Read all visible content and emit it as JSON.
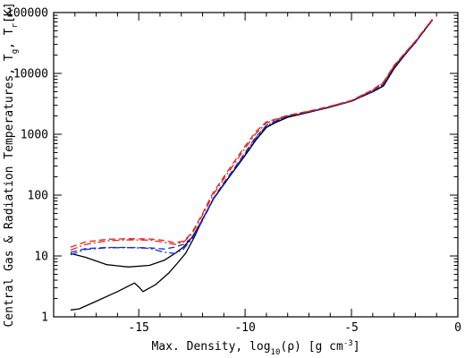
{
  "chart_data": {
    "type": "line",
    "xlabel_prefix": "Max. Density, log",
    "xlabel_sub": "10",
    "xlabel_mid": "(ρ) [g cm",
    "xlabel_sup": "-3",
    "xlabel_suffix": "]",
    "ylabel_prefix": "Central Gas & Radiation Temperatures, T",
    "ylabel_sub1": "g",
    "ylabel_mid": ", T",
    "ylabel_sub2": "r",
    "ylabel_suffix": "[K]",
    "xlim": [
      -19,
      0
    ],
    "ylim": [
      1,
      100000
    ],
    "y_scale": "log",
    "x_ticks": [
      -15,
      -10,
      -5,
      0
    ],
    "y_ticks": [
      1,
      10,
      100,
      1000,
      10000,
      100000
    ],
    "x_tick_labels": [
      "-15",
      "-10",
      "-5",
      "0"
    ],
    "y_tick_labels": [
      "1",
      "10",
      "100",
      "1000",
      "10000",
      "100000"
    ],
    "grid": false,
    "series": [
      {
        "color": "#000000",
        "style": "solid",
        "x": [
          -18.2,
          -17.8,
          -17.0,
          -16.0,
          -15.2,
          -15.0,
          -14.8,
          -14.2,
          -13.6,
          -13.2,
          -12.8,
          -12.4,
          -12.0,
          -11.5,
          -11.0,
          -10.5,
          -10.0,
          -9.5,
          -9.0,
          -8.5,
          -8.0,
          -7.0,
          -6.0,
          -5.0,
          -4.5,
          -4.0,
          -3.5,
          -3.0,
          -2.5,
          -2.0,
          -1.5,
          -1.2
        ],
        "y": [
          1.3,
          1.35,
          1.8,
          2.6,
          3.6,
          3.1,
          2.6,
          3.4,
          5.2,
          7.5,
          11,
          20,
          40,
          85,
          150,
          260,
          450,
          800,
          1300,
          1600,
          1900,
          2300,
          2800,
          3500,
          4200,
          5000,
          6200,
          12000,
          20000,
          32000,
          55000,
          75000
        ]
      },
      {
        "color": "#000000",
        "style": "solid",
        "x": [
          -18.2,
          -17.5,
          -16.5,
          -15.5,
          -14.5,
          -13.8,
          -13.3,
          -12.9,
          -12.5,
          -12.0,
          -11.5,
          -11.0,
          -10.5,
          -10.0,
          -9.5,
          -9.0,
          -8.5,
          -8.0,
          -7.0,
          -6.0,
          -5.0,
          -4.5,
          -4.0,
          -3.5,
          -3.0,
          -2.5,
          -2.0,
          -1.5,
          -1.2
        ],
        "y": [
          11,
          9.5,
          7.2,
          6.6,
          7.0,
          8.5,
          11,
          14,
          20,
          40,
          85,
          150,
          260,
          450,
          800,
          1300,
          1600,
          1900,
          2300,
          2800,
          3500,
          4200,
          5000,
          6200,
          12000,
          20000,
          32000,
          55000,
          75000
        ]
      },
      {
        "color": "#1a2bd6",
        "style": "long-dash",
        "x": [
          -18.2,
          -17.5,
          -16.5,
          -15.5,
          -14.5,
          -13.8,
          -13.3,
          -12.9,
          -12.5,
          -12.0,
          -11.5,
          -11.0,
          -10.5,
          -10.0,
          -9.5,
          -9.0,
          -8.5,
          -8.0,
          -7.0,
          -6.0,
          -5.0,
          -4.5,
          -4.0,
          -3.5,
          -3.0,
          -2.5,
          -2.0,
          -1.5,
          -1.2
        ],
        "y": [
          11.5,
          13.2,
          13.8,
          13.8,
          13.6,
          13.0,
          14.0,
          15.5,
          20,
          40,
          88,
          160,
          280,
          500,
          900,
          1400,
          1700,
          2000,
          2350,
          2850,
          3550,
          4300,
          5200,
          6800,
          13000,
          21000,
          33000,
          56000,
          76000
        ]
      },
      {
        "color": "#1a2bd6",
        "style": "dash-dot",
        "x": [
          -18.2,
          -17.5,
          -16.5,
          -15.5,
          -14.5,
          -13.8,
          -13.3,
          -12.9,
          -12.5,
          -12.0,
          -11.5,
          -11.0,
          -10.5,
          -10.0,
          -9.5,
          -9.0,
          -8.5,
          -8.0,
          -7.0,
          -6.0,
          -5.0,
          -4.5,
          -4.0,
          -3.5,
          -3.0,
          -2.5,
          -2.0,
          -1.5,
          -1.2
        ],
        "y": [
          10.5,
          12.8,
          13.6,
          13.7,
          13.4,
          11.5,
          11.0,
          13.0,
          19,
          38,
          85,
          155,
          270,
          480,
          870,
          1380,
          1680,
          1980,
          2330,
          2830,
          3520,
          4250,
          5100,
          6600,
          12800,
          20500,
          32500,
          55500,
          75500
        ]
      },
      {
        "color": "#e8241c",
        "style": "long-dash",
        "x": [
          -18.2,
          -17.5,
          -16.5,
          -15.5,
          -14.5,
          -13.8,
          -13.3,
          -12.9,
          -12.5,
          -12.0,
          -11.5,
          -11.0,
          -10.5,
          -10.0,
          -9.5,
          -9.0,
          -8.5,
          -8.0,
          -7.0,
          -6.0,
          -5.0,
          -4.5,
          -4.0,
          -3.5,
          -3.0,
          -2.5,
          -2.0,
          -1.5,
          -1.2
        ],
        "y": [
          14,
          17.0,
          18.8,
          19.2,
          19.0,
          18.0,
          16.5,
          17.5,
          24,
          50,
          110,
          200,
          360,
          640,
          1100,
          1600,
          1800,
          2050,
          2400,
          2900,
          3600,
          4400,
          5400,
          7200,
          13500,
          21500,
          34000,
          57000,
          78000
        ]
      },
      {
        "color": "#e8241c",
        "style": "dash-dot",
        "x": [
          -18.2,
          -17.5,
          -16.5,
          -15.5,
          -14.5,
          -13.8,
          -13.3,
          -12.9,
          -12.5,
          -12.0,
          -11.5,
          -11.0,
          -10.5,
          -10.0,
          -9.5,
          -9.0,
          -8.5,
          -8.0,
          -7.0,
          -6.0,
          -5.0,
          -4.5,
          -4.0,
          -3.5,
          -3.0,
          -2.5,
          -2.0,
          -1.5,
          -1.2
        ],
        "y": [
          12.5,
          15.5,
          17.8,
          18.4,
          18.2,
          16.8,
          15.5,
          16.8,
          23,
          47,
          102,
          185,
          330,
          590,
          1020,
          1530,
          1760,
          2020,
          2380,
          2880,
          3580,
          4350,
          5300,
          7000,
          13200,
          21200,
          33500,
          56500,
          77000
        ]
      }
    ]
  }
}
